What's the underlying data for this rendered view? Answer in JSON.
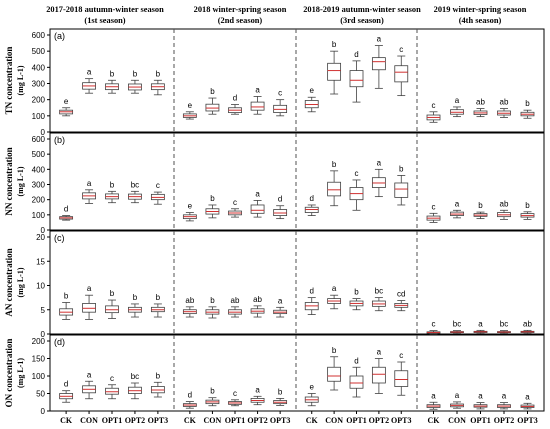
{
  "seasons": [
    {
      "title": "2017-2018 autumn-winter season",
      "subtitle": "(1st season)"
    },
    {
      "title": "2018 winter-spring season",
      "subtitle": "(2nd season)"
    },
    {
      "title": "2018-2019 autumn-winter season",
      "subtitle": "(3rd season)"
    },
    {
      "title": "2019 winter-spring season",
      "subtitle": "(4th season)"
    }
  ],
  "treatments": [
    "CK",
    "CON",
    "OPT1",
    "OPT2",
    "OPT3"
  ],
  "colors": {
    "box": "#404040",
    "median": "#d03030",
    "mean": "#3050c0",
    "divider": "#505050"
  },
  "chart_data": [
    {
      "type": "box",
      "panel": "(a)",
      "ylabel": "TN concentration",
      "unit": "(mg L-1)",
      "ylim": [
        0,
        600
      ],
      "yticks": [
        0,
        100,
        200,
        300,
        400,
        500,
        600
      ],
      "boxes": [
        [
          {
            "min": 100,
            "q1": 112,
            "med": 125,
            "q3": 135,
            "max": 150,
            "sig": "e"
          },
          {
            "min": 240,
            "q1": 265,
            "med": 285,
            "q3": 305,
            "max": 330,
            "sig": "a"
          },
          {
            "min": 240,
            "q1": 262,
            "med": 280,
            "q3": 298,
            "max": 320,
            "sig": "b"
          },
          {
            "min": 240,
            "q1": 260,
            "med": 278,
            "q3": 297,
            "max": 320,
            "sig": "b"
          },
          {
            "min": 230,
            "q1": 262,
            "med": 280,
            "q3": 298,
            "max": 320,
            "sig": "b"
          }
        ],
        [
          {
            "min": 80,
            "q1": 90,
            "med": 100,
            "q3": 112,
            "max": 125,
            "sig": "e"
          },
          {
            "min": 110,
            "q1": 130,
            "med": 148,
            "q3": 172,
            "max": 210,
            "sig": "b"
          },
          {
            "min": 110,
            "q1": 120,
            "med": 135,
            "q3": 150,
            "max": 170,
            "sig": "d"
          },
          {
            "min": 110,
            "q1": 135,
            "med": 155,
            "q3": 185,
            "max": 220,
            "sig": "a"
          },
          {
            "min": 100,
            "q1": 120,
            "med": 140,
            "q3": 165,
            "max": 200,
            "sig": "c"
          }
        ],
        [
          {
            "min": 125,
            "q1": 150,
            "med": 170,
            "q3": 195,
            "max": 215,
            "sig": "e"
          },
          {
            "min": 235,
            "q1": 320,
            "med": 380,
            "q3": 425,
            "max": 500,
            "sig": "b"
          },
          {
            "min": 185,
            "q1": 280,
            "med": 320,
            "q3": 380,
            "max": 440,
            "sig": "d"
          },
          {
            "min": 270,
            "q1": 385,
            "med": 435,
            "q3": 460,
            "max": 535,
            "sig": "a"
          },
          {
            "min": 225,
            "q1": 310,
            "med": 370,
            "q3": 410,
            "max": 470,
            "sig": "c"
          }
        ],
        [
          {
            "min": 60,
            "q1": 75,
            "med": 90,
            "q3": 105,
            "max": 125,
            "sig": "c"
          },
          {
            "min": 95,
            "q1": 110,
            "med": 122,
            "q3": 138,
            "max": 155,
            "sig": "a"
          },
          {
            "min": 95,
            "q1": 108,
            "med": 118,
            "q3": 130,
            "max": 145,
            "sig": "ab"
          },
          {
            "min": 90,
            "q1": 105,
            "med": 116,
            "q3": 130,
            "max": 145,
            "sig": "ab"
          },
          {
            "min": 85,
            "q1": 100,
            "med": 110,
            "q3": 122,
            "max": 135,
            "sig": "b"
          }
        ]
      ]
    },
    {
      "type": "box",
      "panel": "(b)",
      "ylabel": "NN concentration",
      "unit": "(mg L-1)",
      "ylim": [
        0,
        600
      ],
      "yticks": [
        0,
        100,
        200,
        300,
        400,
        500,
        600
      ],
      "boxes": [
        [
          {
            "min": 65,
            "q1": 72,
            "med": 80,
            "q3": 88,
            "max": 95,
            "sig": "d"
          },
          {
            "min": 175,
            "q1": 205,
            "med": 225,
            "q3": 245,
            "max": 265,
            "sig": "a"
          },
          {
            "min": 180,
            "q1": 205,
            "med": 220,
            "q3": 238,
            "max": 255,
            "sig": "b"
          },
          {
            "min": 180,
            "q1": 203,
            "med": 220,
            "q3": 237,
            "max": 255,
            "sig": "bc"
          },
          {
            "min": 170,
            "q1": 200,
            "med": 215,
            "q3": 235,
            "max": 250,
            "sig": "c"
          }
        ],
        [
          {
            "min": 60,
            "q1": 75,
            "med": 88,
            "q3": 100,
            "max": 115,
            "sig": "e"
          },
          {
            "min": 80,
            "q1": 105,
            "med": 122,
            "q3": 140,
            "max": 165,
            "sig": "b"
          },
          {
            "min": 85,
            "q1": 100,
            "med": 112,
            "q3": 125,
            "max": 140,
            "sig": "c"
          },
          {
            "min": 85,
            "q1": 110,
            "med": 130,
            "q3": 165,
            "max": 195,
            "sig": "a"
          },
          {
            "min": 75,
            "q1": 95,
            "med": 112,
            "q3": 135,
            "max": 160,
            "sig": "d"
          }
        ],
        [
          {
            "min": 95,
            "q1": 115,
            "med": 135,
            "q3": 150,
            "max": 165,
            "sig": "d"
          },
          {
            "min": 160,
            "q1": 225,
            "med": 265,
            "q3": 315,
            "max": 390,
            "sig": "b"
          },
          {
            "min": 130,
            "q1": 200,
            "med": 240,
            "q3": 280,
            "max": 330,
            "sig": "c"
          },
          {
            "min": 220,
            "q1": 280,
            "med": 310,
            "q3": 345,
            "max": 400,
            "sig": "a"
          },
          {
            "min": 165,
            "q1": 215,
            "med": 270,
            "q3": 310,
            "max": 360,
            "sig": "b"
          }
        ],
        [
          {
            "min": 50,
            "q1": 65,
            "med": 78,
            "q3": 92,
            "max": 110,
            "sig": "c"
          },
          {
            "min": 80,
            "q1": 95,
            "med": 105,
            "q3": 118,
            "max": 130,
            "sig": "a"
          },
          {
            "min": 75,
            "q1": 90,
            "med": 98,
            "q3": 108,
            "max": 118,
            "sig": "b"
          },
          {
            "min": 70,
            "q1": 88,
            "med": 100,
            "q3": 115,
            "max": 130,
            "sig": "ab"
          },
          {
            "min": 70,
            "q1": 85,
            "med": 95,
            "q3": 108,
            "max": 120,
            "sig": "b"
          }
        ]
      ]
    },
    {
      "type": "box",
      "panel": "(c)",
      "ylabel": "AN concentration",
      "unit": "(mg L-1)",
      "ylim": [
        0,
        20
      ],
      "yticks": [
        0,
        5,
        10,
        15,
        20
      ],
      "boxes": [
        [
          {
            "min": 3,
            "q1": 3.9,
            "med": 4.5,
            "q3": 5.2,
            "max": 6.5,
            "sig": "b"
          },
          {
            "min": 3,
            "q1": 4.5,
            "med": 5.3,
            "q3": 6.3,
            "max": 8,
            "sig": "a"
          },
          {
            "min": 3.2,
            "q1": 4.4,
            "med": 5.0,
            "q3": 5.8,
            "max": 7,
            "sig": "b"
          },
          {
            "min": 3.5,
            "q1": 4.5,
            "med": 5.0,
            "q3": 5.5,
            "max": 6.2,
            "sig": "b"
          },
          {
            "min": 3.5,
            "q1": 4.6,
            "med": 5.0,
            "q3": 5.5,
            "max": 6.2,
            "sig": "b"
          }
        ],
        [
          {
            "min": 3.5,
            "q1": 4.2,
            "med": 4.6,
            "q3": 5.0,
            "max": 5.6,
            "sig": "ab"
          },
          {
            "min": 3.3,
            "q1": 4.1,
            "med": 4.5,
            "q3": 5.0,
            "max": 5.6,
            "sig": "b"
          },
          {
            "min": 3.5,
            "q1": 4.1,
            "med": 4.5,
            "q3": 5.0,
            "max": 5.6,
            "sig": "ab"
          },
          {
            "min": 3.5,
            "q1": 4.3,
            "med": 4.7,
            "q3": 5.2,
            "max": 5.8,
            "sig": "ab"
          },
          {
            "min": 3.5,
            "q1": 4.2,
            "med": 4.5,
            "q3": 4.9,
            "max": 5.5,
            "sig": "a"
          }
        ],
        [
          {
            "min": 4,
            "q1": 5.0,
            "med": 5.8,
            "q3": 6.5,
            "max": 7.5,
            "sig": "d"
          },
          {
            "min": 5.2,
            "q1": 6.3,
            "med": 6.8,
            "q3": 7.3,
            "max": 8,
            "sig": "a"
          },
          {
            "min": 5,
            "q1": 5.8,
            "med": 6.3,
            "q3": 6.8,
            "max": 7.3,
            "sig": "b"
          },
          {
            "min": 4.8,
            "q1": 5.7,
            "med": 6.2,
            "q3": 6.8,
            "max": 7.5,
            "sig": "bc"
          },
          {
            "min": 4.8,
            "q1": 5.5,
            "med": 5.9,
            "q3": 6.3,
            "max": 6.9,
            "sig": "cd"
          }
        ],
        [
          {
            "min": 0,
            "q1": 0.2,
            "med": 0.3,
            "q3": 0.45,
            "max": 0.7,
            "sig": "c"
          },
          {
            "min": 0.1,
            "q1": 0.3,
            "med": 0.4,
            "q3": 0.5,
            "max": 0.7,
            "sig": "bc"
          },
          {
            "min": 0.1,
            "q1": 0.3,
            "med": 0.45,
            "q3": 0.55,
            "max": 0.75,
            "sig": "a"
          },
          {
            "min": 0.1,
            "q1": 0.3,
            "med": 0.4,
            "q3": 0.5,
            "max": 0.7,
            "sig": "bc"
          },
          {
            "min": 0.1,
            "q1": 0.3,
            "med": 0.45,
            "q3": 0.55,
            "max": 0.75,
            "sig": "ab"
          }
        ]
      ]
    },
    {
      "type": "box",
      "panel": "(d)",
      "ylabel": "ON concentration",
      "unit": "(mg L-1)",
      "ylim": [
        0,
        200
      ],
      "yticks": [
        0,
        50,
        100,
        150,
        200
      ],
      "boxes": [
        [
          {
            "min": 25,
            "q1": 35,
            "med": 42,
            "q3": 50,
            "max": 58,
            "sig": "d"
          },
          {
            "min": 35,
            "q1": 52,
            "med": 62,
            "q3": 72,
            "max": 85,
            "sig": "a"
          },
          {
            "min": 35,
            "q1": 48,
            "med": 55,
            "q3": 65,
            "max": 75,
            "sig": "c"
          },
          {
            "min": 35,
            "q1": 50,
            "med": 58,
            "q3": 68,
            "max": 80,
            "sig": "bc"
          },
          {
            "min": 40,
            "q1": 52,
            "med": 60,
            "q3": 70,
            "max": 82,
            "sig": "b"
          }
        ],
        [
          {
            "min": 8,
            "q1": 13,
            "med": 17,
            "q3": 21,
            "max": 27,
            "sig": "d"
          },
          {
            "min": 15,
            "q1": 21,
            "med": 26,
            "q3": 31,
            "max": 38,
            "sig": "b"
          },
          {
            "min": 15,
            "q1": 19,
            "med": 23,
            "q3": 27,
            "max": 32,
            "sig": "c"
          },
          {
            "min": 18,
            "q1": 25,
            "med": 30,
            "q3": 36,
            "max": 42,
            "sig": "a"
          },
          {
            "min": 16,
            "q1": 21,
            "med": 25,
            "q3": 30,
            "max": 36,
            "sig": "b"
          }
        ],
        [
          {
            "min": 15,
            "q1": 25,
            "med": 32,
            "q3": 40,
            "max": 50,
            "sig": "e"
          },
          {
            "min": 60,
            "q1": 85,
            "med": 100,
            "q3": 125,
            "max": 155,
            "sig": "b"
          },
          {
            "min": 40,
            "q1": 65,
            "med": 80,
            "q3": 100,
            "max": 125,
            "sig": "d"
          },
          {
            "min": 50,
            "q1": 80,
            "med": 105,
            "q3": 125,
            "max": 150,
            "sig": "a"
          },
          {
            "min": 45,
            "q1": 70,
            "med": 90,
            "q3": 115,
            "max": 140,
            "sig": "c"
          }
        ],
        [
          {
            "min": 5,
            "q1": 10,
            "med": 14,
            "q3": 18,
            "max": 25,
            "sig": "a"
          },
          {
            "min": 8,
            "q1": 12,
            "med": 16,
            "q3": 20,
            "max": 26,
            "sig": "a"
          },
          {
            "min": 6,
            "q1": 11,
            "med": 14,
            "q3": 18,
            "max": 24,
            "sig": "a"
          },
          {
            "min": 6,
            "q1": 10,
            "med": 14,
            "q3": 18,
            "max": 24,
            "sig": "a"
          },
          {
            "min": 6,
            "q1": 10,
            "med": 13,
            "q3": 17,
            "max": 22,
            "sig": "a"
          }
        ]
      ]
    }
  ]
}
